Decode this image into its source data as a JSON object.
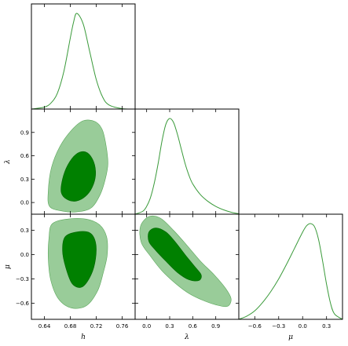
{
  "chart_data": {
    "type": "corner",
    "parameters": [
      "h",
      "λ",
      "μ"
    ],
    "line_color": "#3a9a3a",
    "contour_colors": {
      "inner_68": "#008000",
      "outer_95": "#99cc99"
    },
    "axes": {
      "h": {
        "range": [
          0.62,
          0.78
        ],
        "ticks": [
          0.64,
          0.68,
          0.72,
          0.76
        ],
        "tick_labels": [
          "0.64",
          "0.68",
          "0.72",
          "0.76"
        ]
      },
      "λ": {
        "range": [
          -0.15,
          1.2
        ],
        "ticks": [
          0.0,
          0.3,
          0.6,
          0.9
        ],
        "tick_labels": [
          "0.0",
          "0.3",
          "0.6",
          "0.9"
        ]
      },
      "μ": {
        "range": [
          -0.8,
          0.5
        ],
        "ticks": [
          -0.6,
          -0.3,
          0.0,
          0.3
        ],
        "tick_labels": [
          "−0.6",
          "−0.3",
          "0.0",
          "0.3"
        ]
      }
    },
    "marginals": {
      "h": {
        "x": [
          0.62,
          0.64,
          0.65,
          0.66,
          0.67,
          0.68,
          0.685,
          0.69,
          0.7,
          0.71,
          0.72,
          0.73,
          0.74,
          0.76,
          0.78
        ],
        "y": [
          0.0,
          0.02,
          0.06,
          0.16,
          0.38,
          0.72,
          0.88,
          0.97,
          0.86,
          0.58,
          0.3,
          0.12,
          0.04,
          0.004,
          0.0
        ]
      },
      "λ": {
        "x": [
          -0.15,
          -0.05,
          0.0,
          0.05,
          0.1,
          0.15,
          0.2,
          0.25,
          0.3,
          0.35,
          0.4,
          0.45,
          0.5,
          0.55,
          0.6,
          0.7,
          0.8,
          0.9,
          1.0,
          1.1,
          1.2
        ],
        "y": [
          0.0,
          0.03,
          0.08,
          0.17,
          0.32,
          0.52,
          0.75,
          0.92,
          0.98,
          0.94,
          0.82,
          0.67,
          0.52,
          0.4,
          0.31,
          0.2,
          0.13,
          0.08,
          0.045,
          0.02,
          0.005
        ]
      },
      "μ": {
        "x": [
          -0.8,
          -0.7,
          -0.6,
          -0.5,
          -0.4,
          -0.3,
          -0.2,
          -0.1,
          0.0,
          0.05,
          0.1,
          0.15,
          0.2,
          0.25,
          0.3,
          0.35,
          0.4,
          0.5
        ],
        "y": [
          0.0,
          0.03,
          0.08,
          0.16,
          0.26,
          0.38,
          0.52,
          0.67,
          0.82,
          0.88,
          0.9,
          0.87,
          0.75,
          0.55,
          0.33,
          0.15,
          0.05,
          0.0
        ]
      }
    },
    "contours": {
      "λ_vs_h": {
        "outer_95": [
          [
            0.648,
            -0.05
          ],
          [
            0.646,
            0.15
          ],
          [
            0.651,
            0.45
          ],
          [
            0.664,
            0.72
          ],
          [
            0.682,
            0.93
          ],
          [
            0.7,
            1.05
          ],
          [
            0.718,
            1.04
          ],
          [
            0.729,
            0.94
          ],
          [
            0.735,
            0.74
          ],
          [
            0.738,
            0.5
          ],
          [
            0.734,
            0.3
          ],
          [
            0.726,
            0.1
          ],
          [
            0.712,
            -0.07
          ],
          [
            0.69,
            -0.12
          ],
          [
            0.668,
            -0.11
          ]
        ],
        "inner_68": [
          [
            0.666,
            0.13
          ],
          [
            0.668,
            0.3
          ],
          [
            0.676,
            0.48
          ],
          [
            0.689,
            0.62
          ],
          [
            0.703,
            0.65
          ],
          [
            0.714,
            0.56
          ],
          [
            0.719,
            0.4
          ],
          [
            0.716,
            0.24
          ],
          [
            0.706,
            0.1
          ],
          [
            0.69,
            0.02
          ],
          [
            0.675,
            0.04
          ]
        ]
      },
      "μ_vs_h": {
        "outer_95": [
          [
            0.652,
            0.38
          ],
          [
            0.676,
            0.44
          ],
          [
            0.704,
            0.44
          ],
          [
            0.725,
            0.37
          ],
          [
            0.736,
            0.22
          ],
          [
            0.737,
            0.0
          ],
          [
            0.731,
            -0.22
          ],
          [
            0.722,
            -0.45
          ],
          [
            0.705,
            -0.63
          ],
          [
            0.682,
            -0.66
          ],
          [
            0.662,
            -0.55
          ],
          [
            0.65,
            -0.32
          ],
          [
            0.646,
            -0.05
          ],
          [
            0.647,
            0.2
          ]
        ],
        "inner_68": [
          [
            0.672,
            0.22
          ],
          [
            0.69,
            0.28
          ],
          [
            0.71,
            0.27
          ],
          [
            0.719,
            0.15
          ],
          [
            0.719,
            -0.05
          ],
          [
            0.712,
            -0.25
          ],
          [
            0.698,
            -0.4
          ],
          [
            0.683,
            -0.36
          ],
          [
            0.673,
            -0.16
          ],
          [
            0.668,
            0.05
          ]
        ]
      },
      "μ_vs_λ": {
        "outer_95": [
          [
            -0.08,
            0.35
          ],
          [
            0.03,
            0.47
          ],
          [
            0.18,
            0.45
          ],
          [
            0.35,
            0.3
          ],
          [
            0.52,
            0.12
          ],
          [
            0.7,
            -0.08
          ],
          [
            0.88,
            -0.25
          ],
          [
            1.03,
            -0.42
          ],
          [
            1.1,
            -0.55
          ],
          [
            1.05,
            -0.64
          ],
          [
            0.9,
            -0.62
          ],
          [
            0.72,
            -0.56
          ],
          [
            0.55,
            -0.48
          ],
          [
            0.38,
            -0.36
          ],
          [
            0.2,
            -0.2
          ],
          [
            0.05,
            -0.02
          ],
          [
            -0.07,
            0.15
          ]
        ],
        "inner_68": [
          [
            0.03,
            0.28
          ],
          [
            0.12,
            0.33
          ],
          [
            0.25,
            0.28
          ],
          [
            0.37,
            0.16
          ],
          [
            0.5,
            0.0
          ],
          [
            0.62,
            -0.14
          ],
          [
            0.71,
            -0.25
          ],
          [
            0.68,
            -0.32
          ],
          [
            0.55,
            -0.31
          ],
          [
            0.4,
            -0.22
          ],
          [
            0.25,
            -0.08
          ],
          [
            0.12,
            0.05
          ],
          [
            0.03,
            0.16
          ]
        ]
      }
    },
    "grid": false
  }
}
